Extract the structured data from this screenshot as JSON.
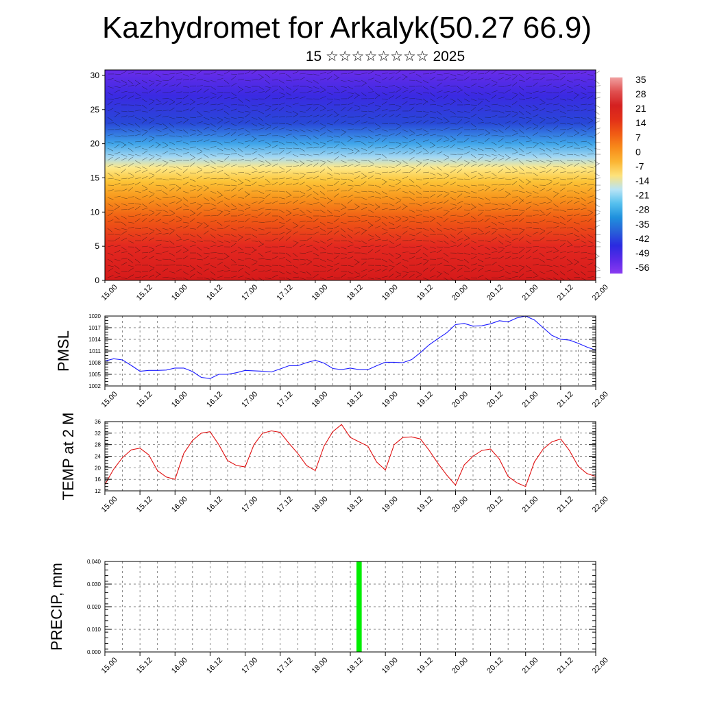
{
  "title": "Kazhydromet for Arkalyk(50.27 66.9)",
  "subtitle": "15 ☆☆☆☆☆☆☆☆ 2025",
  "time_ticks": [
    "15.00",
    "15.12",
    "16.00",
    "16.12",
    "17.00",
    "17.12",
    "18.00",
    "18.12",
    "19.00",
    "19.12",
    "20.00",
    "20.12",
    "21.00",
    "21.12",
    "22.00"
  ],
  "colors": {
    "pmsl_line": "#1a1aff",
    "temp_line": "#e01010",
    "precip_bar": "#00ee00",
    "grid": "#555555"
  },
  "chart_data": [
    {
      "type": "heatmap",
      "name": "cross-section",
      "y_ticks": [
        "0",
        "5",
        "10",
        "15",
        "20",
        "25",
        "30"
      ],
      "ylim": [
        0,
        30.8
      ],
      "x_ticks": [
        "15.00",
        "15.12",
        "16.00",
        "16.12",
        "17.00",
        "17.12",
        "18.00",
        "18.12",
        "19.00",
        "19.12",
        "20.00",
        "20.12",
        "21.00",
        "21.12",
        "22.00"
      ],
      "colorbar_labels": [
        "35",
        "28",
        "21",
        "14",
        "7",
        "0",
        "-7",
        "-14",
        "-21",
        "-28",
        "-35",
        "-42",
        "-49",
        "-56"
      ],
      "colorbar_colors": [
        "#f0a0a0",
        "#e05050",
        "#d42020",
        "#e23018",
        "#f05a14",
        "#f88a1a",
        "#fbb432",
        "#fde27a",
        "#b8e4f5",
        "#55c0ee",
        "#1f90dd",
        "#2860d8",
        "#2a2ae0",
        "#5a2ae8",
        "#8a3af0"
      ],
      "vertical_profile": [
        {
          "height": 0,
          "color": "#d61a1a"
        },
        {
          "height": 5,
          "color": "#e32820"
        },
        {
          "height": 9,
          "color": "#f05a14"
        },
        {
          "height": 12,
          "color": "#f8941c"
        },
        {
          "height": 14.5,
          "color": "#fcc437"
        },
        {
          "height": 16.5,
          "color": "#fde98a"
        },
        {
          "height": 18,
          "color": "#a7d9f2"
        },
        {
          "height": 20,
          "color": "#3fa6ea"
        },
        {
          "height": 23,
          "color": "#2848d8"
        },
        {
          "height": 27,
          "color": "#3a2ae2"
        },
        {
          "height": 30.8,
          "color": "#6a2cea"
        }
      ]
    },
    {
      "type": "line",
      "name": "PMSL",
      "ylabel": "PMSL",
      "ylim": [
        1002,
        1020
      ],
      "y_ticks": [
        "1002",
        "1005",
        "1008",
        "1011",
        "1014",
        "1017",
        "1020"
      ],
      "x": [
        0,
        3,
        6,
        9,
        12,
        15,
        18,
        21,
        24,
        27,
        30,
        33,
        36,
        39,
        42,
        45,
        48,
        51,
        54,
        57,
        60,
        63,
        66,
        69,
        72,
        75,
        78,
        81,
        84,
        87,
        90,
        93,
        96,
        99,
        102,
        105,
        108,
        111,
        114,
        117,
        120,
        123,
        126,
        129,
        132,
        135,
        138,
        141,
        144,
        147,
        150,
        153,
        156,
        159,
        162,
        165,
        168
      ],
      "series": [
        {
          "values": [
            1008.4,
            1009.0,
            1008.7,
            1007.3,
            1005.8,
            1006.0,
            1006.0,
            1006.1,
            1006.6,
            1006.6,
            1005.7,
            1004.2,
            1003.9,
            1005.0,
            1005.0,
            1005.4,
            1006.0,
            1005.9,
            1005.8,
            1005.6,
            1006.4,
            1007.2,
            1007.2,
            1008.0,
            1008.6,
            1007.9,
            1006.5,
            1006.2,
            1006.6,
            1006.2,
            1006.2,
            1007.2,
            1008.1,
            1008.1,
            1008.0,
            1008.8,
            1010.6,
            1012.6,
            1014.2,
            1015.7,
            1017.8,
            1018.1,
            1017.4,
            1017.5,
            1018.0,
            1018.8,
            1018.5,
            1019.5,
            1020.0,
            1019.0,
            1017.0,
            1015.0,
            1014.0,
            1013.8,
            1013.0,
            1012.0,
            1011.2
          ]
        }
      ]
    },
    {
      "type": "line",
      "name": "TEMP",
      "ylabel": "TEMP at 2 M",
      "ylim": [
        12,
        36
      ],
      "y_ticks": [
        "12",
        "16",
        "20",
        "24",
        "28",
        "32",
        "36"
      ],
      "x": [
        0,
        3,
        6,
        9,
        12,
        15,
        18,
        21,
        24,
        27,
        30,
        33,
        36,
        39,
        42,
        45,
        48,
        51,
        54,
        57,
        60,
        63,
        66,
        69,
        72,
        75,
        78,
        81,
        84,
        87,
        90,
        93,
        96,
        99,
        102,
        105,
        108,
        111,
        114,
        117,
        120,
        123,
        126,
        129,
        132,
        135,
        138,
        141,
        144,
        147,
        150,
        153,
        156,
        159,
        162,
        165,
        168
      ],
      "series": [
        {
          "values": [
            14.2,
            19.5,
            23.5,
            26.2,
            26.8,
            24.5,
            19.0,
            16.8,
            16.0,
            25.0,
            29.5,
            32.0,
            32.5,
            28.0,
            22.5,
            20.8,
            20.3,
            28.0,
            32.0,
            32.8,
            32.3,
            28.5,
            25.0,
            20.8,
            19.0,
            27.5,
            32.5,
            35.0,
            30.5,
            29.0,
            27.5,
            22.0,
            19.2,
            28.0,
            30.5,
            30.7,
            30.0,
            26.0,
            21.5,
            17.5,
            14.0,
            21.0,
            24.0,
            26.0,
            26.5,
            23.0,
            17.0,
            14.8,
            13.5,
            22.0,
            26.5,
            29.0,
            30.0,
            26.0,
            20.5,
            18.0,
            17.0
          ]
        }
      ]
    },
    {
      "type": "bar",
      "name": "PRECIP",
      "ylabel": "PRECIP, mm",
      "ylim": [
        0,
        0.04
      ],
      "y_ticks": [
        "0.000",
        "0.010",
        "0.020",
        "0.030",
        "0.040"
      ],
      "x": [
        87
      ],
      "values": [
        0.04
      ]
    }
  ]
}
